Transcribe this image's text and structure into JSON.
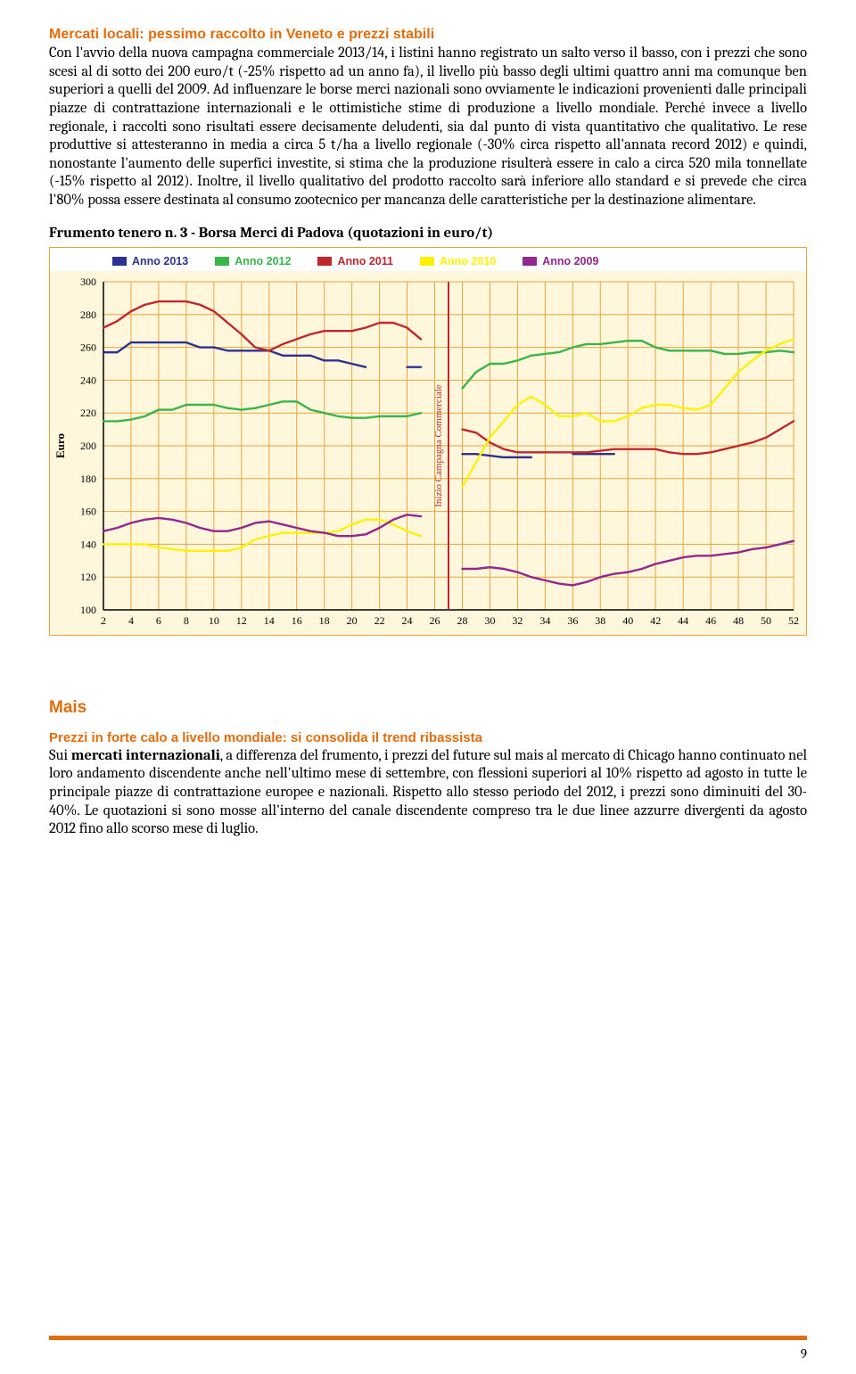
{
  "sec1": {
    "heading": "Mercati locali: pessimo raccolto in Veneto e prezzi stabili",
    "body": "Con l'avvio della nuova campagna commerciale 2013/14, i listini hanno registrato un salto verso il basso, con i prezzi che sono scesi al di sotto dei 200 euro/t (-25% rispetto ad un anno fa), il livello più basso degli ultimi quattro anni ma comunque ben superiori a quelli del 2009. Ad influenzare le borse merci nazionali sono ovviamente le indicazioni provenienti dalle principali piazze di contrattazione internazionali e le ottimistiche stime di produzione a livello mondiale. Perché invece a livello regionale, i raccolti sono risultati essere decisamente deludenti, sia dal punto di vista quantitativo che qualitativo. Le rese produttive si attesteranno in media a circa 5 t/ha a livello regionale (-30% circa rispetto all'annata record 2012) e quindi, nonostante l'aumento delle superfici investite, si stima che la produzione risulterà essere in calo a circa 520 mila tonnellate (-15% rispetto al 2012). Inoltre, il livello qualitativo del prodotto raccolto sarà inferiore allo standard e si prevede che circa l'80% possa essere destinata al consumo zootecnico per mancanza delle caratteristiche per la destinazione alimentare."
  },
  "chart": {
    "title": "Frumento tenero n. 3 - Borsa Merci di Padova (quotazioni in euro/t)",
    "legend": [
      {
        "label": "Anno 2013",
        "color": "#2e3192"
      },
      {
        "label": "Anno 2012",
        "color": "#39b54a"
      },
      {
        "label": "Anno 2011",
        "color": "#c1272d"
      },
      {
        "label": "Anno 2010",
        "color": "#fff200"
      },
      {
        "label": "Anno 2009",
        "color": "#92278f"
      }
    ],
    "ylabel": "Euro",
    "ylim": [
      100,
      300
    ],
    "ytick_step": 20,
    "xlim": [
      2,
      52
    ],
    "xtick_step": 2,
    "bg": "#fff7dc",
    "grid_color": "#e8a33d",
    "axis_color": "#000000",
    "divider_x": 27,
    "divider_label": "Inizio Campagna Commerciale",
    "divider_color": "#c1272d",
    "series": {
      "Anno 2013": {
        "color": "#2e3192",
        "width": 2.4,
        "pts": [
          [
            2,
            257
          ],
          [
            3,
            257
          ],
          [
            4,
            263
          ],
          [
            5,
            263
          ],
          [
            6,
            263
          ],
          [
            7,
            263
          ],
          [
            8,
            263
          ],
          [
            9,
            260
          ],
          [
            10,
            260
          ],
          [
            11,
            258
          ],
          [
            12,
            258
          ],
          [
            13,
            258
          ],
          [
            14,
            258
          ],
          [
            15,
            255
          ],
          [
            16,
            255
          ],
          [
            17,
            255
          ],
          [
            18,
            252
          ],
          [
            19,
            252
          ],
          [
            20,
            250
          ],
          [
            21,
            248
          ],
          [
            24,
            248
          ],
          [
            25,
            248
          ],
          [
            28,
            195
          ],
          [
            29,
            195
          ],
          [
            30,
            194
          ],
          [
            31,
            193
          ],
          [
            32,
            193
          ],
          [
            33,
            193
          ],
          [
            36,
            195
          ],
          [
            37,
            195
          ],
          [
            38,
            195
          ],
          [
            39,
            195
          ]
        ]
      },
      "Anno 2012": {
        "color": "#39b54a",
        "width": 2.4,
        "pts": [
          [
            2,
            215
          ],
          [
            3,
            215
          ],
          [
            4,
            216
          ],
          [
            5,
            218
          ],
          [
            6,
            222
          ],
          [
            7,
            222
          ],
          [
            8,
            225
          ],
          [
            9,
            225
          ],
          [
            10,
            225
          ],
          [
            11,
            223
          ],
          [
            12,
            222
          ],
          [
            13,
            223
          ],
          [
            14,
            225
          ],
          [
            15,
            227
          ],
          [
            16,
            227
          ],
          [
            17,
            222
          ],
          [
            18,
            220
          ],
          [
            19,
            218
          ],
          [
            20,
            217
          ],
          [
            21,
            217
          ],
          [
            22,
            218
          ],
          [
            23,
            218
          ],
          [
            24,
            218
          ],
          [
            25,
            220
          ],
          [
            28,
            235
          ],
          [
            29,
            245
          ],
          [
            30,
            250
          ],
          [
            31,
            250
          ],
          [
            32,
            252
          ],
          [
            33,
            255
          ],
          [
            34,
            256
          ],
          [
            35,
            257
          ],
          [
            36,
            260
          ],
          [
            37,
            262
          ],
          [
            38,
            262
          ],
          [
            39,
            263
          ],
          [
            40,
            264
          ],
          [
            41,
            264
          ],
          [
            42,
            260
          ],
          [
            43,
            258
          ],
          [
            44,
            258
          ],
          [
            45,
            258
          ],
          [
            46,
            258
          ],
          [
            47,
            256
          ],
          [
            48,
            256
          ],
          [
            49,
            257
          ],
          [
            50,
            257
          ],
          [
            51,
            258
          ],
          [
            52,
            257
          ]
        ]
      },
      "Anno 2011": {
        "color": "#c1272d",
        "width": 2.4,
        "pts": [
          [
            2,
            272
          ],
          [
            3,
            276
          ],
          [
            4,
            282
          ],
          [
            5,
            286
          ],
          [
            6,
            288
          ],
          [
            7,
            288
          ],
          [
            8,
            288
          ],
          [
            9,
            286
          ],
          [
            10,
            282
          ],
          [
            11,
            275
          ],
          [
            12,
            268
          ],
          [
            13,
            260
          ],
          [
            14,
            258
          ],
          [
            15,
            262
          ],
          [
            16,
            265
          ],
          [
            17,
            268
          ],
          [
            18,
            270
          ],
          [
            19,
            270
          ],
          [
            20,
            270
          ],
          [
            21,
            272
          ],
          [
            22,
            275
          ],
          [
            23,
            275
          ],
          [
            24,
            272
          ],
          [
            25,
            265
          ],
          [
            28,
            210
          ],
          [
            29,
            208
          ],
          [
            30,
            202
          ],
          [
            31,
            198
          ],
          [
            32,
            196
          ],
          [
            33,
            196
          ],
          [
            34,
            196
          ],
          [
            35,
            196
          ],
          [
            36,
            196
          ],
          [
            37,
            196
          ],
          [
            38,
            197
          ],
          [
            39,
            198
          ],
          [
            40,
            198
          ],
          [
            41,
            198
          ],
          [
            42,
            198
          ],
          [
            43,
            196
          ],
          [
            44,
            195
          ],
          [
            45,
            195
          ],
          [
            46,
            196
          ],
          [
            47,
            198
          ],
          [
            48,
            200
          ],
          [
            49,
            202
          ],
          [
            50,
            205
          ],
          [
            51,
            210
          ],
          [
            52,
            215
          ]
        ]
      },
      "Anno 2010": {
        "color": "#fff200",
        "width": 2.4,
        "pts": [
          [
            2,
            140
          ],
          [
            3,
            140
          ],
          [
            4,
            140
          ],
          [
            5,
            140
          ],
          [
            6,
            138
          ],
          [
            7,
            137
          ],
          [
            8,
            136
          ],
          [
            9,
            136
          ],
          [
            10,
            136
          ],
          [
            11,
            136
          ],
          [
            12,
            138
          ],
          [
            13,
            143
          ],
          [
            14,
            145
          ],
          [
            15,
            147
          ],
          [
            16,
            147
          ],
          [
            17,
            147
          ],
          [
            18,
            147
          ],
          [
            19,
            148
          ],
          [
            20,
            152
          ],
          [
            21,
            155
          ],
          [
            22,
            155
          ],
          [
            23,
            152
          ],
          [
            24,
            148
          ],
          [
            25,
            145
          ],
          [
            28,
            175
          ],
          [
            29,
            190
          ],
          [
            30,
            205
          ],
          [
            31,
            215
          ],
          [
            32,
            225
          ],
          [
            33,
            230
          ],
          [
            34,
            225
          ],
          [
            35,
            218
          ],
          [
            36,
            218
          ],
          [
            37,
            220
          ],
          [
            38,
            215
          ],
          [
            39,
            215
          ],
          [
            40,
            218
          ],
          [
            41,
            223
          ],
          [
            42,
            225
          ],
          [
            43,
            225
          ],
          [
            44,
            223
          ],
          [
            45,
            222
          ],
          [
            46,
            225
          ],
          [
            47,
            235
          ],
          [
            48,
            245
          ],
          [
            49,
            252
          ],
          [
            50,
            258
          ],
          [
            51,
            262
          ],
          [
            52,
            265
          ]
        ]
      },
      "Anno 2009": {
        "color": "#92278f",
        "width": 2.4,
        "pts": [
          [
            2,
            148
          ],
          [
            3,
            150
          ],
          [
            4,
            153
          ],
          [
            5,
            155
          ],
          [
            6,
            156
          ],
          [
            7,
            155
          ],
          [
            8,
            153
          ],
          [
            9,
            150
          ],
          [
            10,
            148
          ],
          [
            11,
            148
          ],
          [
            12,
            150
          ],
          [
            13,
            153
          ],
          [
            14,
            154
          ],
          [
            15,
            152
          ],
          [
            16,
            150
          ],
          [
            17,
            148
          ],
          [
            18,
            147
          ],
          [
            19,
            145
          ],
          [
            20,
            145
          ],
          [
            21,
            146
          ],
          [
            22,
            150
          ],
          [
            23,
            155
          ],
          [
            24,
            158
          ],
          [
            25,
            157
          ],
          [
            28,
            125
          ],
          [
            29,
            125
          ],
          [
            30,
            126
          ],
          [
            31,
            125
          ],
          [
            32,
            123
          ],
          [
            33,
            120
          ],
          [
            34,
            118
          ],
          [
            35,
            116
          ],
          [
            36,
            115
          ],
          [
            37,
            117
          ],
          [
            38,
            120
          ],
          [
            39,
            122
          ],
          [
            40,
            123
          ],
          [
            41,
            125
          ],
          [
            42,
            128
          ],
          [
            43,
            130
          ],
          [
            44,
            132
          ],
          [
            45,
            133
          ],
          [
            46,
            133
          ],
          [
            47,
            134
          ],
          [
            48,
            135
          ],
          [
            49,
            137
          ],
          [
            50,
            138
          ],
          [
            51,
            140
          ],
          [
            52,
            142
          ]
        ]
      }
    }
  },
  "sec2": {
    "heading": "Mais",
    "subheading": "Prezzi in forte calo a livello mondiale: si consolida il trend ribassista",
    "lead": "Sui ",
    "leadbold": "mercati internazionali",
    "body": ", a differenza del frumento, i prezzi del future sul mais al mercato di Chicago hanno continuato nel loro andamento discendente anche nell'ultimo mese di settembre, con flessioni superiori al 10% rispetto ad agosto in tutte le principale piazze di contrattazione europee e nazionali. Rispetto allo stesso periodo del 2012, i prezzi sono diminuiti del 30-40%. Le quotazioni si sono mosse all'interno del canale discendente compreso tra le due linee azzurre divergenti da agosto 2012 fino allo scorso mese di luglio."
  },
  "page_number": "9"
}
